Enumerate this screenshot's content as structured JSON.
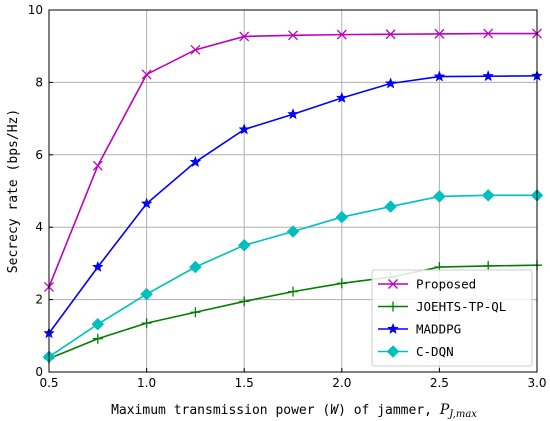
{
  "chart_data": {
    "type": "line",
    "title": "",
    "xlabel": {
      "prefix": "Maximum transmission power (",
      "var": "W",
      "middle": ") of jammer, ",
      "sym": "P",
      "sub": "J,max"
    },
    "ylabel": "Secrecy rate (bps/Hz)",
    "xlim": [
      0.5,
      3.0
    ],
    "ylim": [
      0,
      10
    ],
    "xticks": [
      "0.5",
      "1.0",
      "1.5",
      "2.0",
      "2.5",
      "3.0"
    ],
    "yticks": [
      "0",
      "2",
      "4",
      "6",
      "8",
      "10"
    ],
    "grid": true,
    "legend_position": "lower right",
    "x": [
      0.5,
      0.75,
      1.0,
      1.25,
      1.5,
      1.75,
      2.0,
      2.25,
      2.5,
      2.75,
      3.0
    ],
    "series": [
      {
        "name": "Proposed",
        "color": "#bf00bf",
        "marker": "x",
        "values": [
          2.35,
          5.7,
          8.22,
          8.9,
          9.27,
          9.3,
          9.32,
          9.33,
          9.34,
          9.35,
          9.35
        ]
      },
      {
        "name": "JOEHTS-TP-QL",
        "color": "#007f00",
        "marker": "+",
        "values": [
          0.37,
          0.92,
          1.35,
          1.65,
          1.95,
          2.22,
          2.45,
          2.62,
          2.9,
          2.93,
          2.95
        ]
      },
      {
        "name": "MADDPG",
        "color": "#0000ff",
        "marker": "star",
        "values": [
          1.07,
          2.9,
          4.65,
          5.8,
          6.7,
          7.12,
          7.57,
          7.97,
          8.16,
          8.17,
          8.18
        ]
      },
      {
        "name": "C-DQN",
        "color": "#00bfbf",
        "marker": "diamond",
        "values": [
          0.42,
          1.32,
          2.15,
          2.9,
          3.5,
          3.88,
          4.28,
          4.57,
          4.85,
          4.88,
          4.88
        ]
      }
    ]
  }
}
